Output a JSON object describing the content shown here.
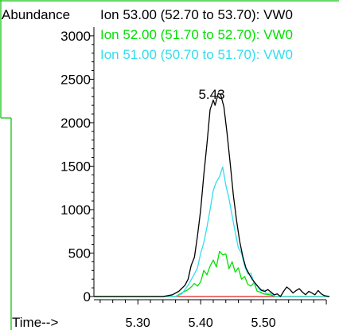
{
  "chart_data": {
    "type": "line",
    "ylabel": "Abundance",
    "xlabel": "Time-->",
    "xlim": [
      5.23,
      5.605
    ],
    "ylim": [
      0,
      3100
    ],
    "x_ticks": [
      5.3,
      5.4,
      5.5
    ],
    "x_tick_labels": [
      "5.30",
      "5.40",
      "5.50"
    ],
    "y_ticks": [
      0,
      500,
      1000,
      1500,
      2000,
      2500,
      3000
    ],
    "y_tick_labels": [
      "0",
      "500",
      "1000",
      "1500",
      "2000",
      "2500",
      "3000"
    ],
    "grid": false,
    "legend_placement": "top",
    "annotations": [
      {
        "text": "5.43",
        "x": 5.43,
        "y": 2340
      }
    ],
    "series": [
      {
        "name": "Ion  53.00 (52.70 to 53.70): VW0",
        "color": "#000000",
        "x": [
          5.23,
          5.34,
          5.355,
          5.365,
          5.375,
          5.38,
          5.385,
          5.39,
          5.395,
          5.4,
          5.405,
          5.41,
          5.415,
          5.42,
          5.423,
          5.428,
          5.432,
          5.437,
          5.442,
          5.447,
          5.452,
          5.457,
          5.462,
          5.467,
          5.472,
          5.477,
          5.482,
          5.487,
          5.492,
          5.497,
          5.502,
          5.507,
          5.512,
          5.517,
          5.522,
          5.527,
          5.532,
          5.537,
          5.542,
          5.547,
          5.552,
          5.557,
          5.562,
          5.567,
          5.572,
          5.577,
          5.582,
          5.587,
          5.592,
          5.597,
          5.605
        ],
        "values": [
          0,
          0,
          20,
          60,
          130,
          200,
          360,
          450,
          700,
          1000,
          1400,
          1760,
          2150,
          2260,
          2200,
          2340,
          2320,
          2180,
          1880,
          1530,
          1170,
          880,
          640,
          460,
          330,
          260,
          200,
          150,
          110,
          70,
          60,
          80,
          50,
          20,
          30,
          0,
          60,
          110,
          80,
          40,
          70,
          90,
          50,
          20,
          60,
          40,
          20,
          70,
          30,
          10,
          0
        ]
      },
      {
        "name": "Ion  52.00 (51.70 to 52.70): VW0",
        "color": "#00e100",
        "x": [
          5.23,
          5.36,
          5.37,
          5.38,
          5.385,
          5.39,
          5.395,
          5.4,
          5.405,
          5.41,
          5.415,
          5.42,
          5.425,
          5.43,
          5.435,
          5.44,
          5.445,
          5.45,
          5.455,
          5.46,
          5.465,
          5.47,
          5.475,
          5.48,
          5.485,
          5.49,
          5.495,
          5.5,
          5.51,
          5.52,
          5.605
        ],
        "values": [
          0,
          0,
          40,
          80,
          110,
          150,
          120,
          170,
          300,
          250,
          350,
          420,
          340,
          520,
          480,
          490,
          320,
          400,
          280,
          330,
          200,
          230,
          140,
          120,
          160,
          60,
          50,
          30,
          20,
          0,
          0
        ]
      },
      {
        "name": "Ion  51.00 (50.70 to 51.70): VW0",
        "color": "#33ddee",
        "x": [
          5.23,
          5.36,
          5.37,
          5.38,
          5.39,
          5.395,
          5.4,
          5.405,
          5.41,
          5.415,
          5.42,
          5.425,
          5.43,
          5.435,
          5.44,
          5.445,
          5.45,
          5.455,
          5.46,
          5.465,
          5.47,
          5.475,
          5.48,
          5.485,
          5.49,
          5.495,
          5.5,
          5.505,
          5.51,
          5.52,
          5.605
        ],
        "values": [
          0,
          0,
          30,
          130,
          260,
          330,
          500,
          620,
          800,
          1000,
          1220,
          1320,
          1380,
          1490,
          1280,
          1130,
          930,
          740,
          560,
          500,
          350,
          260,
          270,
          150,
          120,
          70,
          80,
          30,
          40,
          0,
          0
        ]
      },
      {
        "color": "#dd2222",
        "x": [
          5.23,
          5.605
        ],
        "values": [
          0,
          0
        ]
      }
    ]
  }
}
